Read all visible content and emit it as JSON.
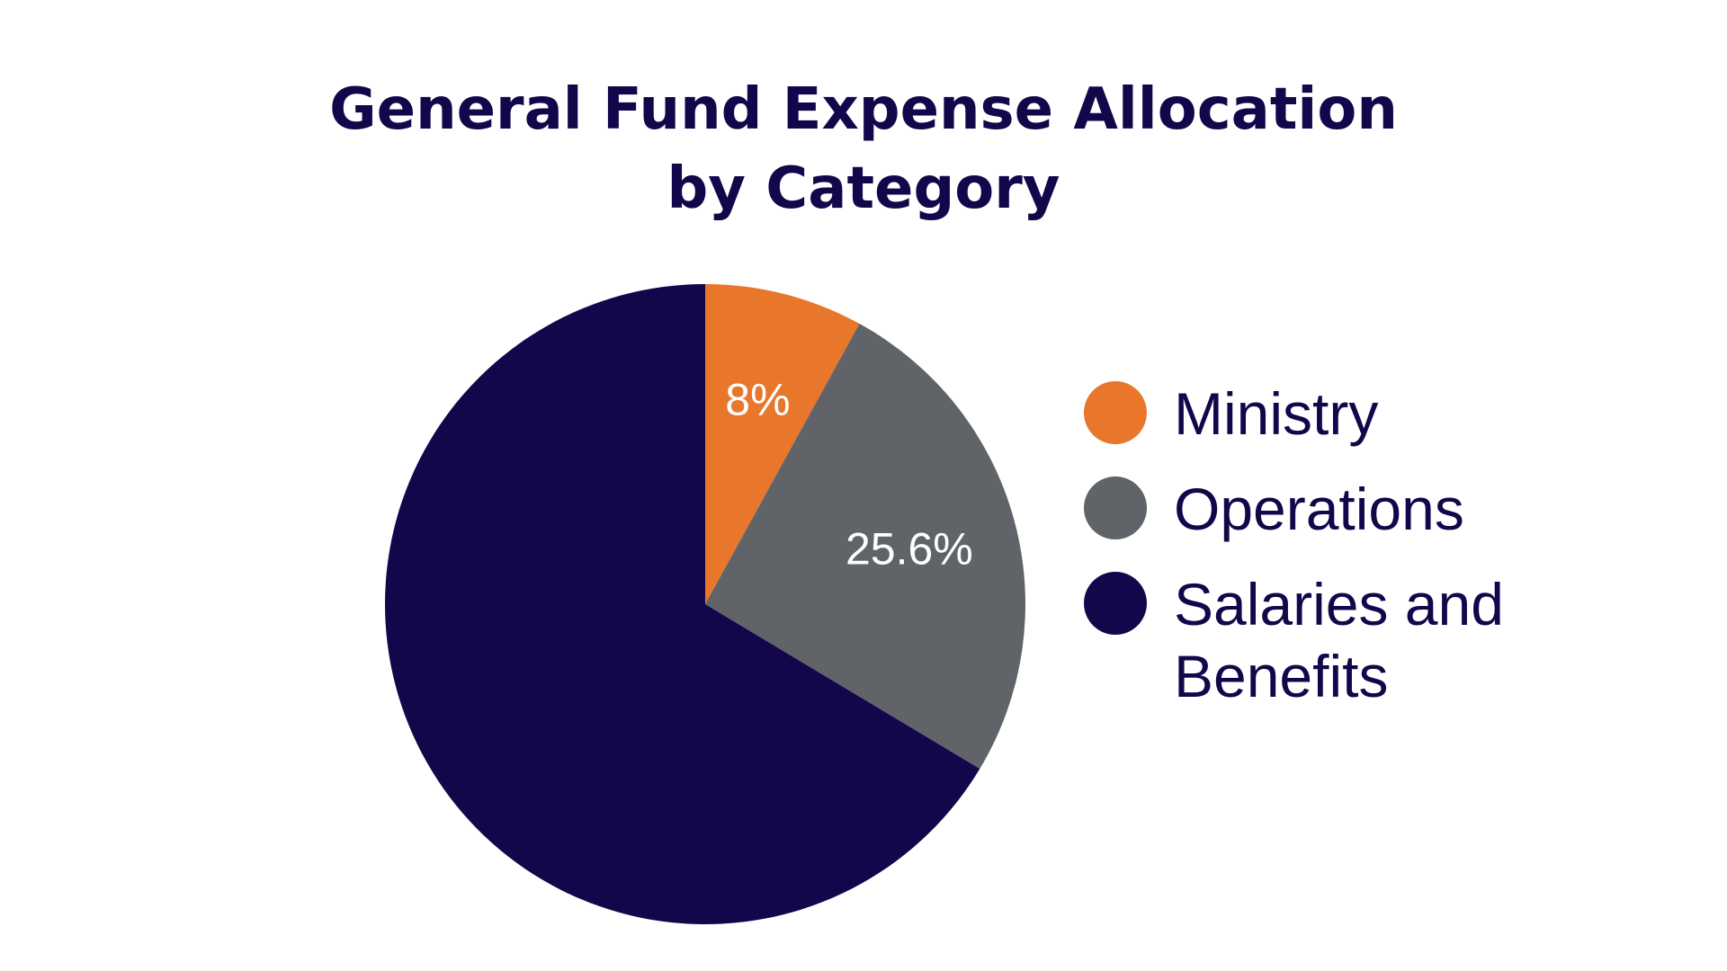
{
  "chart_data": {
    "type": "pie",
    "title_lines": [
      "General Fund Expense Allocation",
      "by Category"
    ],
    "slices": [
      {
        "name": "Ministry",
        "value": 8,
        "label": "8%",
        "color": "#e8762b"
      },
      {
        "name": "Operations",
        "value": 25.6,
        "label": "25.6%",
        "color": "#606368"
      },
      {
        "name": "Salaries and Benefits",
        "value": 66.4,
        "label": "",
        "color": "#13064a"
      }
    ],
    "legend": {
      "placement": "right",
      "items": [
        {
          "label": "Ministry",
          "color": "#e8762b"
        },
        {
          "label": "Operations",
          "color": "#606368"
        },
        {
          "label": "Salaries and Benefits",
          "color": "#13064a"
        }
      ]
    },
    "start_angle": "12 o'clock",
    "direction": "clockwise"
  }
}
